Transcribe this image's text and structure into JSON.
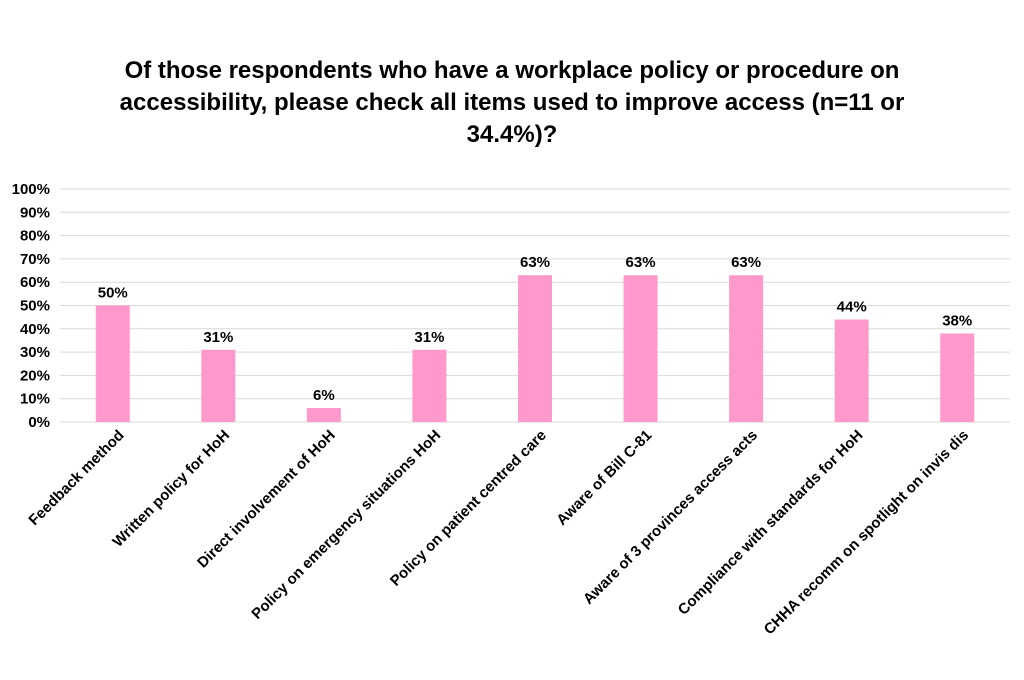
{
  "chart_data": {
    "type": "bar",
    "title": "Of those respondents who have a workplace policy or procedure on accessibility, please check all items used to improve access (n=11 or 34.4%)?",
    "categories": [
      "Feedback method",
      "Written policy for HoH",
      "Direct involvement of HoH",
      "Policy on emergency situations HoH",
      "Policy on patient centred care",
      "Aware of Bill C-81",
      "Aware of 3 provinces access acts",
      "Compliance with standards for HoH",
      "CHHA recomm on spotlight on invis dis"
    ],
    "values": [
      50,
      31,
      6,
      31,
      63,
      63,
      63,
      44,
      38
    ],
    "data_labels": [
      "50%",
      "31%",
      "6%",
      "31%",
      "63%",
      "63%",
      "63%",
      "44%",
      "38%"
    ],
    "ylim": [
      0,
      100
    ],
    "yticks": [
      "0%",
      "10%",
      "20%",
      "30%",
      "40%",
      "50%",
      "60%",
      "70%",
      "80%",
      "90%",
      "100%"
    ],
    "xlabel": "",
    "ylabel": "",
    "grid": true,
    "legend": "none",
    "bar_color": "#ff99cc"
  }
}
